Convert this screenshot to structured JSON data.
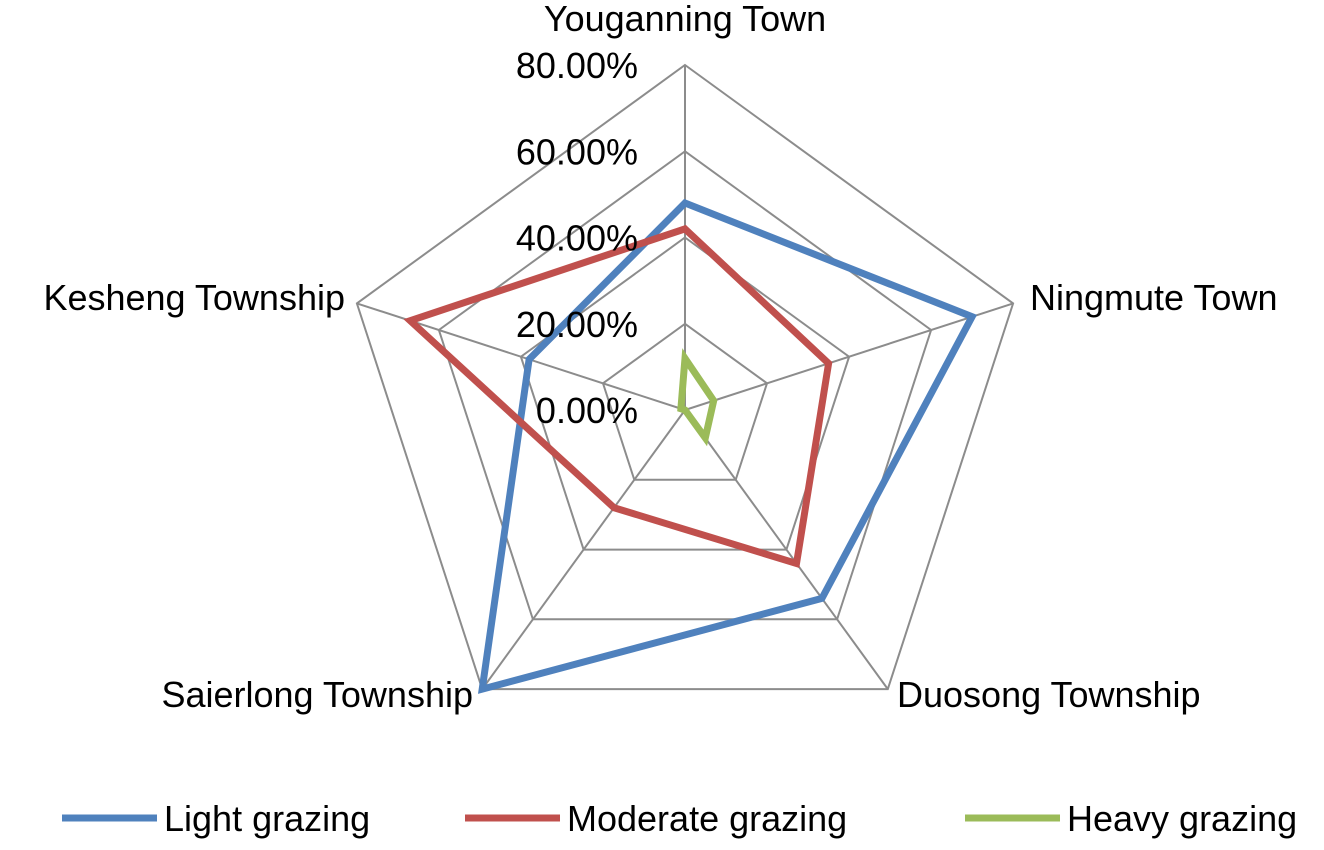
{
  "chart_data": {
    "type": "radar",
    "categories": [
      "Youganning Town",
      "Ningmute Town",
      "Duosong Township",
      "Saierlong Township",
      "Kesheng Township"
    ],
    "rlim": [
      0,
      80
    ],
    "ticks": [
      0,
      20,
      40,
      60,
      80
    ],
    "tick_labels": [
      "0.00%",
      "20.00%",
      "40.00%",
      "60.00%",
      "80.00%"
    ],
    "grid": true,
    "legend_position": "bottom",
    "series": [
      {
        "name": "Light grazing",
        "color": "#4F81BD",
        "values": [
          48,
          70,
          54,
          80,
          38
        ]
      },
      {
        "name": "Moderate grazing",
        "color": "#C0504D",
        "values": [
          42,
          35,
          44,
          28,
          67
        ]
      },
      {
        "name": "Heavy grazing",
        "color": "#9BBB59",
        "values": [
          12,
          7,
          8,
          0,
          1
        ]
      }
    ]
  }
}
